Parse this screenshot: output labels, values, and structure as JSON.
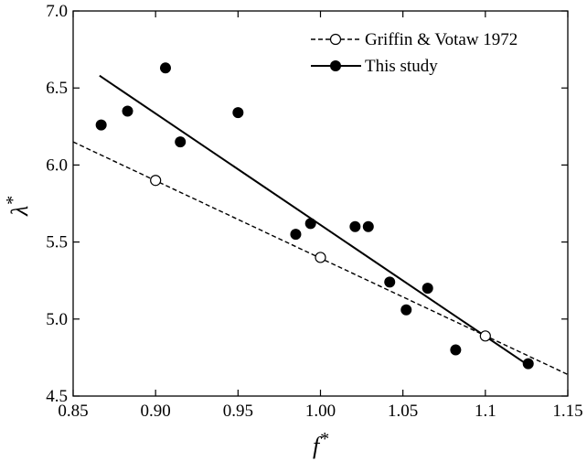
{
  "chart_data": {
    "type": "scatter",
    "title": "",
    "xlabel": "f",
    "xlabel_sup": "*",
    "ylabel": "λ",
    "ylabel_sup": "*",
    "xlim": [
      0.85,
      1.15
    ],
    "ylim": [
      4.5,
      7.0
    ],
    "x_ticks": [
      0.85,
      0.9,
      0.95,
      1.0,
      1.05,
      1.1,
      1.15
    ],
    "x_tick_labels": [
      "0.85",
      "0.90",
      "0.95",
      "1.00",
      "1.05",
      "1.1",
      "1.15"
    ],
    "y_ticks": [
      4.5,
      5.0,
      5.5,
      6.0,
      6.5,
      7.0
    ],
    "y_tick_labels": [
      "4.5",
      "5.0",
      "5.5",
      "6.0",
      "6.5",
      "7.0"
    ],
    "grid": false,
    "legend_position": "top-right",
    "series": [
      {
        "name": "Griffin & Votaw 1972",
        "marker": "open-circle",
        "line": "dashed",
        "points": [
          {
            "x": 0.9,
            "y": 5.9
          },
          {
            "x": 1.0,
            "y": 5.4
          },
          {
            "x": 1.1,
            "y": 4.89
          }
        ],
        "fit": [
          [
            0.85,
            6.15
          ],
          [
            1.15,
            4.64
          ]
        ]
      },
      {
        "name": "This study",
        "marker": "filled-circle",
        "line": "solid",
        "points": [
          {
            "x": 0.867,
            "y": 6.26
          },
          {
            "x": 0.883,
            "y": 6.35
          },
          {
            "x": 0.906,
            "y": 6.63
          },
          {
            "x": 0.915,
            "y": 6.15
          },
          {
            "x": 0.95,
            "y": 6.34
          },
          {
            "x": 0.985,
            "y": 5.55
          },
          {
            "x": 0.994,
            "y": 5.62
          },
          {
            "x": 1.021,
            "y": 5.6
          },
          {
            "x": 1.029,
            "y": 5.6
          },
          {
            "x": 1.042,
            "y": 5.24
          },
          {
            "x": 1.052,
            "y": 5.06
          },
          {
            "x": 1.065,
            "y": 5.2
          },
          {
            "x": 1.082,
            "y": 4.8
          },
          {
            "x": 1.126,
            "y": 4.71
          }
        ],
        "fit": [
          [
            0.866,
            6.58
          ],
          [
            1.126,
            4.7
          ]
        ]
      }
    ]
  }
}
